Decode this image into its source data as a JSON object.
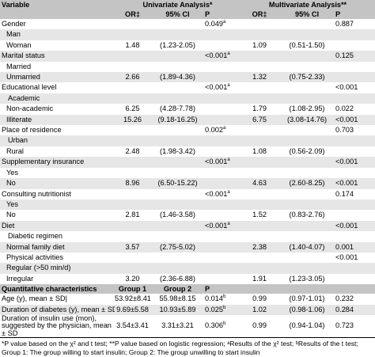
{
  "header1": {
    "variable": "Variable",
    "univariate": "Univariate Analysis*",
    "multivariate": "Multivariate Analysis**"
  },
  "header2": {
    "or_label": "OR‡",
    "ci_label": "95% CI",
    "p_label": "P"
  },
  "rows": [
    {
      "label": "Gender",
      "indent": 0,
      "u_or": "",
      "u_ci": "",
      "u_p": "0.049",
      "u_p_sup": "a",
      "m_or": "",
      "m_ci": "",
      "m_p": "0.887",
      "m_p_sup": ""
    },
    {
      "label": "Man",
      "indent": 1,
      "u_or": "",
      "u_ci": "",
      "u_p": "",
      "u_p_sup": "",
      "m_or": "",
      "m_ci": "",
      "m_p": "",
      "m_p_sup": ""
    },
    {
      "label": "Woman",
      "indent": 1,
      "u_or": "1.48",
      "u_ci": "(1.23-2.05)",
      "u_p": "",
      "u_p_sup": "",
      "m_or": "1.09",
      "m_ci": "(0.51-1.50)",
      "m_p": "",
      "m_p_sup": ""
    },
    {
      "label": "Marital status",
      "indent": 0,
      "u_or": "",
      "u_ci": "",
      "u_p": "<0.001",
      "u_p_sup": "a",
      "m_or": "",
      "m_ci": "",
      "m_p": "0.125",
      "m_p_sup": ""
    },
    {
      "label": "Married",
      "indent": 1,
      "u_or": "",
      "u_ci": "",
      "u_p": "",
      "u_p_sup": "",
      "m_or": "",
      "m_ci": "",
      "m_p": "",
      "m_p_sup": ""
    },
    {
      "label": "Unmarried",
      "indent": 1,
      "u_or": "2.66",
      "u_ci": "(1.89-4.36)",
      "u_p": "",
      "u_p_sup": "",
      "m_or": "1.32",
      "m_ci": "(0.75-2.33)",
      "m_p": "",
      "m_p_sup": ""
    },
    {
      "label": "Educational level",
      "indent": 0,
      "u_or": "",
      "u_ci": "",
      "u_p": "<0.001",
      "u_p_sup": "a",
      "m_or": "",
      "m_ci": "",
      "m_p": "<0.001",
      "m_p_sup": ""
    },
    {
      "label": "Academic",
      "indent": 2,
      "u_or": "",
      "u_ci": "",
      "u_p": "",
      "u_p_sup": "",
      "m_or": "",
      "m_ci": "",
      "m_p": "",
      "m_p_sup": ""
    },
    {
      "label": "Non-academic",
      "indent": 1,
      "u_or": "6.25",
      "u_ci": "(4.28-7.78)",
      "u_p": "",
      "u_p_sup": "",
      "m_or": "1.79",
      "m_ci": "(1.08-2.95)",
      "m_p": "0.022",
      "m_p_sup": ""
    },
    {
      "label": "Illiterate",
      "indent": 1,
      "u_or": "15.26",
      "u_ci": "(9.18-16.25)",
      "u_p": "",
      "u_p_sup": "",
      "m_or": "6.75",
      "m_ci": "(3.08-14.76)",
      "m_p": "<0.001",
      "m_p_sup": ""
    },
    {
      "label": "Place of residence",
      "indent": 0,
      "u_or": "",
      "u_ci": "",
      "u_p": "0.002",
      "u_p_sup": "a",
      "m_or": "",
      "m_ci": "",
      "m_p": "0.703",
      "m_p_sup": ""
    },
    {
      "label": "Urban",
      "indent": 2,
      "u_or": "",
      "u_ci": "",
      "u_p": "",
      "u_p_sup": "",
      "m_or": "",
      "m_ci": "",
      "m_p": "",
      "m_p_sup": ""
    },
    {
      "label": "Rural",
      "indent": 1,
      "u_or": "2.48",
      "u_ci": "(1.98-3.42)",
      "u_p": "",
      "u_p_sup": "",
      "m_or": "1.08",
      "m_ci": "(0.56-2.09)",
      "m_p": "",
      "m_p_sup": ""
    },
    {
      "label": "Supplementary insurance",
      "indent": 0,
      "u_or": "",
      "u_ci": "",
      "u_p": "<0.001",
      "u_p_sup": "a",
      "m_or": "",
      "m_ci": "",
      "m_p": "<0.001",
      "m_p_sup": ""
    },
    {
      "label": "Yes",
      "indent": 1,
      "u_or": "",
      "u_ci": "",
      "u_p": "",
      "u_p_sup": "",
      "m_or": "",
      "m_ci": "",
      "m_p": "",
      "m_p_sup": ""
    },
    {
      "label": "No",
      "indent": 1,
      "u_or": "8.96",
      "u_ci": "(6.50-15.22)",
      "u_p": "",
      "u_p_sup": "",
      "m_or": "4.63",
      "m_ci": "(2.60-8.25)",
      "m_p": "<0.001",
      "m_p_sup": ""
    },
    {
      "label": "Consulting nutritionist",
      "indent": 0,
      "u_or": "",
      "u_ci": "",
      "u_p": "<0.001",
      "u_p_sup": "a",
      "m_or": "",
      "m_ci": "",
      "m_p": "0.174",
      "m_p_sup": ""
    },
    {
      "label": "Yes",
      "indent": 1,
      "u_or": "",
      "u_ci": "",
      "u_p": "",
      "u_p_sup": "",
      "m_or": "",
      "m_ci": "",
      "m_p": "",
      "m_p_sup": ""
    },
    {
      "label": "No",
      "indent": 1,
      "u_or": "2.81",
      "u_ci": "(1.46-3.58)",
      "u_p": "",
      "u_p_sup": "",
      "m_or": "1.52",
      "m_ci": "(0.83-2.76)",
      "m_p": "",
      "m_p_sup": ""
    },
    {
      "label": "Diet",
      "indent": 0,
      "u_or": "",
      "u_ci": "",
      "u_p": "<0.001",
      "u_p_sup": "a",
      "m_or": "",
      "m_ci": "",
      "m_p": "<0.001",
      "m_p_sup": ""
    },
    {
      "label": "Diabetic regimen",
      "indent": 2,
      "u_or": "",
      "u_ci": "",
      "u_p": "",
      "u_p_sup": "",
      "m_or": "",
      "m_ci": "",
      "m_p": "",
      "m_p_sup": ""
    },
    {
      "label": "Normal family diet",
      "indent": 1,
      "u_or": "3.57",
      "u_ci": "(2.75-5.02)",
      "u_p": "",
      "u_p_sup": "",
      "m_or": "2.38",
      "m_ci": "(1.40-4.07)",
      "m_p": "0.001",
      "m_p_sup": ""
    },
    {
      "label": "Physical activities",
      "indent": 1,
      "u_or": "",
      "u_ci": "",
      "u_p": "",
      "u_p_sup": "",
      "m_or": "",
      "m_ci": "",
      "m_p": "<0.001",
      "m_p_sup": ""
    },
    {
      "label": "Regular (>50 min/d)",
      "indent": 1,
      "u_or": "",
      "u_ci": "",
      "u_p": "",
      "u_p_sup": "",
      "m_or": "",
      "m_ci": "",
      "m_p": "",
      "m_p_sup": ""
    },
    {
      "label": "Irregular",
      "indent": 1,
      "u_or": "3.20",
      "u_ci": "(2.36-6.88)",
      "u_p": "",
      "u_p_sup": "",
      "m_or": "1.91",
      "m_ci": "(1.23-3.05)",
      "m_p": "",
      "m_p_sup": ""
    }
  ],
  "quant_header": {
    "label": "Quantitative characteristics",
    "g1": "Group 1",
    "g2": "Group 2",
    "p": "P"
  },
  "quant_rows": [
    {
      "label": "Age (y), mean ± SD|",
      "g1": "53.92±8.41",
      "g2": "55.98±8.15",
      "u_p": "0.014",
      "u_p_sup": "b",
      "m_or": "0.99",
      "m_ci": "(0.97-1.01)",
      "m_p": "0.232"
    },
    {
      "label": "Duration of diabetes (y), mean ± SD|",
      "g1": "9.69±5.58",
      "g2": "10.93±5.89",
      "u_p": "0.025",
      "u_p_sup": "b",
      "m_or": "1.02",
      "m_ci": "(0.98-1.06)",
      "m_p": "0.284"
    },
    {
      "label": "Duration of insulin use (mon), suggested by the physician, mean ± SD",
      "g1": "3.54±3.41",
      "g2": "3.31±3.21",
      "u_p": "0.306",
      "u_p_sup": "b",
      "m_or": "0.99",
      "m_ci": "(0.94-1.04)",
      "m_p": "0.723"
    }
  ],
  "footnotes": {
    "line1": "*P value based on the χ² and t test; **P value based on logistic regression; ᵃResults of the χ² test; ᵇResults of the t test;",
    "line2": "Group 1: The group willing to start insulin; Group 2: The group unwilling to start insulin"
  }
}
